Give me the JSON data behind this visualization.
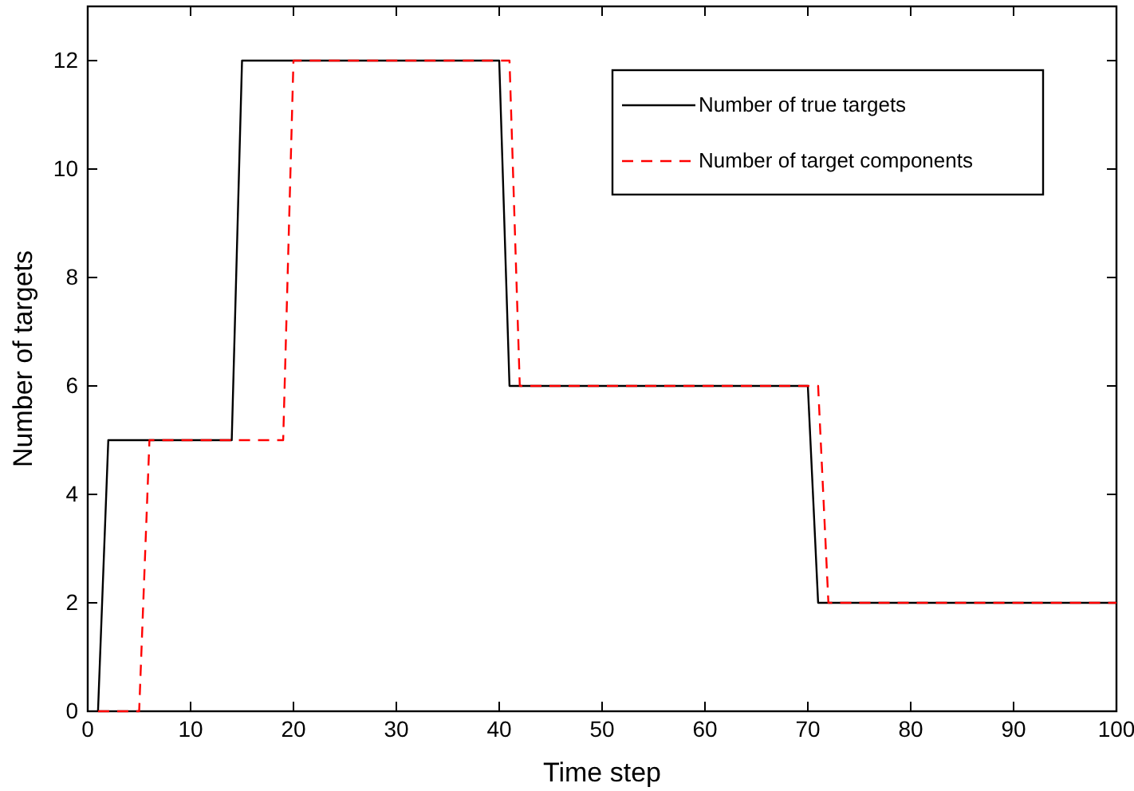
{
  "chart_data": {
    "type": "line",
    "xlabel": "Time step",
    "ylabel": "Number of targets",
    "xlim": [
      0,
      100
    ],
    "xticks": [
      0,
      10,
      20,
      30,
      40,
      50,
      60,
      70,
      80,
      90,
      100
    ],
    "ylim": [
      0,
      13
    ],
    "yticks": [
      0,
      2,
      4,
      6,
      8,
      10,
      12
    ],
    "grid": false,
    "legend": "top right",
    "marker": "none",
    "series": [
      {
        "name": "Number of true targets",
        "color": "#000000",
        "line_style": "solid",
        "x": [
          1,
          2,
          14,
          15,
          40,
          41,
          70,
          71,
          100
        ],
        "values": [
          0,
          5,
          5,
          12,
          12,
          6,
          6,
          2,
          2
        ]
      },
      {
        "name": "Number of target components",
        "color": "#ff0000",
        "line_style": "dashed",
        "x": [
          1,
          5,
          6,
          19,
          20,
          41,
          42,
          71,
          72,
          100
        ],
        "values": [
          0,
          0,
          5,
          5,
          12,
          12,
          6,
          6,
          2,
          2
        ]
      }
    ]
  }
}
